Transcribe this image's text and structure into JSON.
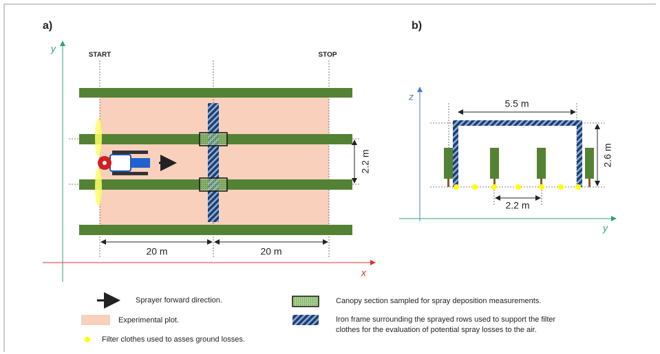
{
  "panel_a": {
    "label": "a)",
    "axis_y": "y",
    "axis_x": "x",
    "start": "START",
    "stop": "STOP",
    "row_spacing": "2.2 m",
    "distances": [
      "20 m",
      "20 m"
    ]
  },
  "panel_b": {
    "label": "b)",
    "axis_z": "z",
    "axis_y": "y",
    "frame_width": "5.5 m",
    "frame_height": "2.6 m",
    "row_spacing": "2.2 m"
  },
  "legend": {
    "sprayer_direction": "Sprayer forward direction.",
    "experimental_plot": "Experimental plot.",
    "filter_clothes": "Filter clothes used to asses ground losses.",
    "canopy_section": "Canopy section sampled for spray deposition measurements.",
    "iron_frame": [
      "Iron frame surrounding the sprayed rows used to support the filter",
      "clothes for the evaluation of potential spray losses to the air."
    ]
  }
}
